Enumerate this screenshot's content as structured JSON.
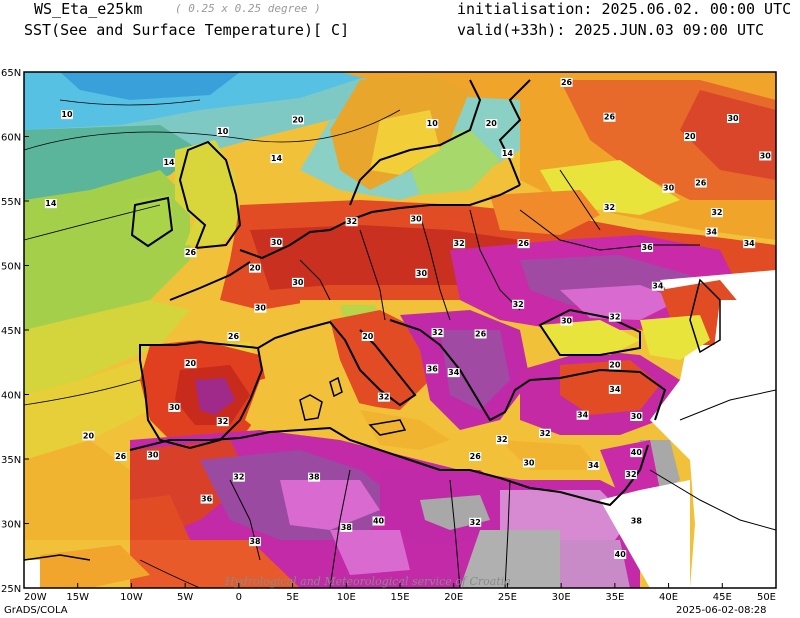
{
  "header": {
    "model": "WS_Eta_e25km",
    "resolution": "( 0.25 x 0.25 degree )",
    "variable": "SST(See and Surface Temperature)[ C]",
    "init": "initialisation: 2025.06.02. 00:00 UTC",
    "valid": "valid(+33h): 2025.JUN.03 09:00 UTC"
  },
  "axes": {
    "lon_ticks": [
      "20W",
      "15W",
      "10W",
      "5W",
      "0",
      "5E",
      "10E",
      "15E",
      "20E",
      "25E",
      "30E",
      "35E",
      "40E",
      "45E",
      "50E"
    ],
    "lat_ticks": [
      "25N",
      "30N",
      "35N",
      "40N",
      "45N",
      "50N",
      "55N",
      "60N",
      "65N"
    ],
    "lon_range": [
      -20,
      50
    ],
    "lat_range": [
      25,
      65
    ]
  },
  "watermark": "Hydrological and Meteorological service of Croatia",
  "footer": {
    "left": "GrADS/COLA",
    "right": "2025-06-02-08:28"
  },
  "contour_labels": [
    {
      "v": "10",
      "lon": -16,
      "lat": 61.5
    },
    {
      "v": "10",
      "lon": -1.5,
      "lat": 60.2
    },
    {
      "v": "14",
      "lon": -6.5,
      "lat": 57.8
    },
    {
      "v": "14",
      "lon": -17.5,
      "lat": 54.6
    },
    {
      "v": "14",
      "lon": 3.5,
      "lat": 58.1
    },
    {
      "v": "20",
      "lon": 5.5,
      "lat": 61.1
    },
    {
      "v": "20",
      "lon": 1.5,
      "lat": 49.6
    },
    {
      "v": "26",
      "lon": -4.5,
      "lat": 50.8
    },
    {
      "v": "30",
      "lon": 3.5,
      "lat": 51.6
    },
    {
      "v": "32",
      "lon": 10.5,
      "lat": 53.2
    },
    {
      "v": "30",
      "lon": 16.5,
      "lat": 53.4
    },
    {
      "v": "32",
      "lon": 20.5,
      "lat": 51.5
    },
    {
      "v": "30",
      "lon": 5.5,
      "lat": 48.5
    },
    {
      "v": "30",
      "lon": 2,
      "lat": 46.5
    },
    {
      "v": "26",
      "lon": -0.5,
      "lat": 44.3
    },
    {
      "v": "20",
      "lon": -4.5,
      "lat": 42.2
    },
    {
      "v": "30",
      "lon": -6,
      "lat": 38.8
    },
    {
      "v": "32",
      "lon": -1.5,
      "lat": 37.7
    },
    {
      "v": "20",
      "lon": -14,
      "lat": 36.6
    },
    {
      "v": "26",
      "lon": -11,
      "lat": 35
    },
    {
      "v": "30",
      "lon": -8,
      "lat": 35.1
    },
    {
      "v": "32",
      "lon": 0,
      "lat": 33.4
    },
    {
      "v": "38",
      "lon": 7,
      "lat": 33.4
    },
    {
      "v": "38",
      "lon": 10,
      "lat": 29.5
    },
    {
      "v": "40",
      "lon": 13,
      "lat": 30
    },
    {
      "v": "38",
      "lon": 1.5,
      "lat": 28.4
    },
    {
      "v": "32",
      "lon": 22,
      "lat": 29.9
    },
    {
      "v": "38",
      "lon": 37,
      "lat": 30
    },
    {
      "v": "40",
      "lon": 35.5,
      "lat": 27.4
    },
    {
      "v": "36",
      "lon": -3,
      "lat": 31.7
    },
    {
      "v": "32",
      "lon": 13.5,
      "lat": 39.6
    },
    {
      "v": "36",
      "lon": 18,
      "lat": 41.8
    },
    {
      "v": "34",
      "lon": 20,
      "lat": 41.5
    },
    {
      "v": "32",
      "lon": 26,
      "lat": 46.8
    },
    {
      "v": "30",
      "lon": 30.5,
      "lat": 45.5
    },
    {
      "v": "32",
      "lon": 35,
      "lat": 45.8
    },
    {
      "v": "34",
      "lon": 39,
      "lat": 48.2
    },
    {
      "v": "36",
      "lon": 38,
      "lat": 51.2
    },
    {
      "v": "32",
      "lon": 34.5,
      "lat": 54.3
    },
    {
      "v": "30",
      "lon": 40,
      "lat": 55.8
    },
    {
      "v": "26",
      "lon": 43,
      "lat": 56.2
    },
    {
      "v": "32",
      "lon": 44.5,
      "lat": 53.9
    },
    {
      "v": "34",
      "lon": 44,
      "lat": 52.4
    },
    {
      "v": "34",
      "lon": 47.5,
      "lat": 51.5
    },
    {
      "v": "30",
      "lon": 46,
      "lat": 61.2
    },
    {
      "v": "20",
      "lon": 42,
      "lat": 59.8
    },
    {
      "v": "26",
      "lon": 34.5,
      "lat": 61.3
    },
    {
      "v": "30",
      "lon": 49,
      "lat": 58.3
    },
    {
      "v": "26",
      "lon": 30.5,
      "lat": 64
    },
    {
      "v": "20",
      "lon": 23.5,
      "lat": 60.8
    },
    {
      "v": "14",
      "lon": 25,
      "lat": 58.5
    },
    {
      "v": "10",
      "lon": 18,
      "lat": 60.8
    },
    {
      "v": "26",
      "lon": 26.5,
      "lat": 51.5
    },
    {
      "v": "30",
      "lon": 17,
      "lat": 49.2
    },
    {
      "v": "20",
      "lon": 12,
      "lat": 44.3
    },
    {
      "v": "32",
      "lon": 18.5,
      "lat": 44.6
    },
    {
      "v": "26",
      "lon": 22.5,
      "lat": 44.5
    },
    {
      "v": "20",
      "lon": 35,
      "lat": 42.1
    },
    {
      "v": "34",
      "lon": 32,
      "lat": 38.2
    },
    {
      "v": "32",
      "lon": 28.5,
      "lat": 36.8
    },
    {
      "v": "30",
      "lon": 37,
      "lat": 38.1
    },
    {
      "v": "34",
      "lon": 35,
      "lat": 40.2
    },
    {
      "v": "26",
      "lon": 22,
      "lat": 35
    },
    {
      "v": "30",
      "lon": 27,
      "lat": 34.5
    },
    {
      "v": "34",
      "lon": 33,
      "lat": 34.3
    },
    {
      "v": "32",
      "lon": 24.5,
      "lat": 36.3
    },
    {
      "v": "40",
      "lon": 37,
      "lat": 35.3
    },
    {
      "v": "32",
      "lon": 36.5,
      "lat": 33.6
    }
  ]
}
